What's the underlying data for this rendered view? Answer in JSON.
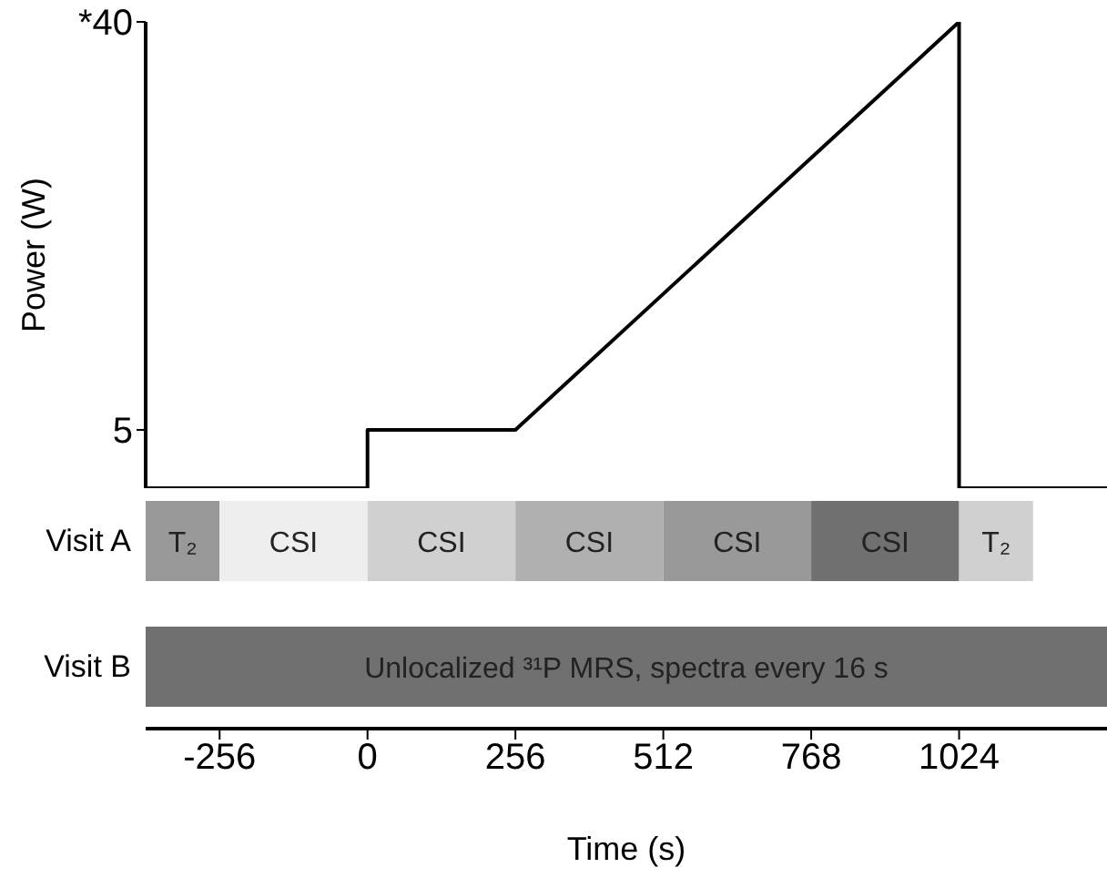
{
  "chart_data": [
    {
      "type": "line",
      "ylabel": "Power (W)",
      "x": [
        -384,
        0,
        0,
        256,
        1024,
        1024,
        1280
      ],
      "series": [
        {
          "color": "#000000",
          "values": [
            0,
            0,
            5,
            5,
            40,
            0,
            0
          ]
        }
      ],
      "xlim": [
        -384,
        1280
      ],
      "ylim": [
        0,
        40
      ],
      "yticks": [
        5,
        {
          "value": 40,
          "label": "*40"
        }
      ],
      "tick_labels": "y",
      "grid": false,
      "legend": false,
      "marker": "none",
      "line_style": "solid"
    },
    {
      "type": "bar",
      "orientation": "horizontal",
      "categories": [
        "Visit A",
        "Visit B"
      ],
      "xlabel": "Time (s)",
      "series": [
        {
          "color": "#999999",
          "values": [
            128,
            null
          ],
          "base": [
            -384,
            null
          ],
          "value_labels": [
            "T₂",
            null
          ]
        },
        {
          "color": "#eeeeee",
          "values": [
            256,
            null
          ],
          "base": [
            -256,
            null
          ],
          "value_labels": [
            "CSI",
            null
          ]
        },
        {
          "color": "#d0d0d0",
          "values": [
            256,
            null
          ],
          "base": [
            0,
            null
          ],
          "value_labels": [
            "CSI",
            null
          ]
        },
        {
          "color": "#b0b0b0",
          "values": [
            256,
            null
          ],
          "base": [
            256,
            null
          ],
          "value_labels": [
            "CSI",
            null
          ]
        },
        {
          "color": "#999999",
          "values": [
            256,
            null
          ],
          "base": [
            512,
            null
          ],
          "value_labels": [
            "CSI",
            null
          ]
        },
        {
          "color": "#707070",
          "values": [
            256,
            null
          ],
          "base": [
            768,
            null
          ],
          "value_labels": [
            "CSI",
            null
          ]
        },
        {
          "color": "#d0d0d0",
          "values": [
            128,
            null
          ],
          "base": [
            1024,
            null
          ],
          "value_labels": [
            "T₂",
            null
          ]
        },
        {
          "color": "#707070",
          "values": [
            null,
            1664
          ],
          "base": [
            null,
            -384
          ],
          "value_labels": [
            null,
            "Unlocalized ³¹P MRS, spectra every 16 s"
          ]
        }
      ],
      "xlim": [
        -384,
        1280
      ],
      "xticks": [
        -256,
        0,
        256,
        512,
        768,
        1024
      ],
      "grid": false,
      "legend": false
    }
  ]
}
